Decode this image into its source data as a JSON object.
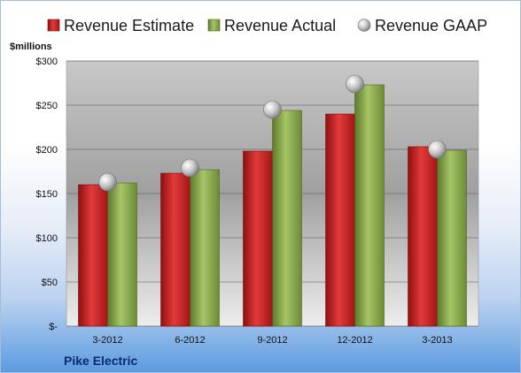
{
  "chart_data": {
    "type": "bar",
    "title": "",
    "company": "Pike Electric",
    "ylabel": "$millions",
    "xlabel": "",
    "categories": [
      "3-2012",
      "6-2012",
      "9-2012",
      "12-2012",
      "3-2013"
    ],
    "series": [
      {
        "name": "Revenue Estimate",
        "type": "bar",
        "values": [
          160,
          173,
          198,
          240,
          203
        ],
        "color": "#d42a2a"
      },
      {
        "name": "Revenue Actual",
        "type": "bar",
        "values": [
          162,
          177,
          244,
          273,
          199
        ],
        "color": "#8aab4d"
      },
      {
        "name": "Revenue GAAP",
        "type": "marker",
        "values": [
          163,
          179,
          245,
          274,
          200
        ],
        "color": "#b0b0b0"
      }
    ],
    "ylim": [
      0,
      300
    ],
    "yticks": [
      0,
      50,
      100,
      150,
      200,
      250,
      300
    ],
    "ytick_labels": [
      "$-",
      "$50",
      "$100",
      "$150",
      "$200",
      "$250",
      "$300"
    ],
    "legend_position": "top",
    "grid": true
  }
}
